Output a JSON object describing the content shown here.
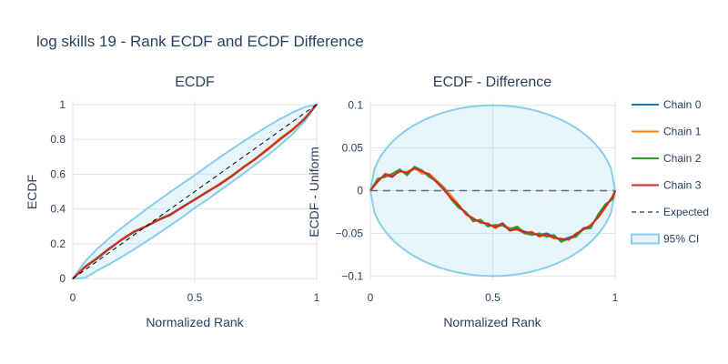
{
  "chart_data": [
    {
      "type": "line",
      "title": "ECDF",
      "xlabel": "Normalized Rank",
      "ylabel": "ECDF",
      "xlim": [
        0,
        1
      ],
      "ylim": [
        -0.02,
        1.02
      ],
      "x_ticks": [
        0,
        0.5,
        1
      ],
      "x_tick_labels": [
        "0",
        "0.5",
        "1"
      ],
      "y_ticks": [
        0,
        0.2,
        0.4,
        0.6,
        0.8,
        1
      ],
      "y_tick_labels": [
        "0",
        "0.2",
        "0.4",
        "0.6",
        "0.8",
        "1"
      ],
      "x": [
        0,
        0.05,
        0.1,
        0.15,
        0.2,
        0.25,
        0.3,
        0.35,
        0.4,
        0.45,
        0.5,
        0.55,
        0.6,
        0.65,
        0.7,
        0.75,
        0.8,
        0.85,
        0.9,
        0.95,
        1
      ],
      "series": [
        {
          "name": "Chain 0",
          "color": "#1f77b4",
          "values": [
            0,
            0.065,
            0.115,
            0.17,
            0.222,
            0.268,
            0.3,
            0.34,
            0.37,
            0.413,
            0.456,
            0.5,
            0.54,
            0.585,
            0.64,
            0.69,
            0.745,
            0.805,
            0.855,
            0.92,
            1
          ]
        },
        {
          "name": "Chain 1",
          "color": "#ff7f0e",
          "values": [
            0,
            0.07,
            0.118,
            0.172,
            0.225,
            0.27,
            0.302,
            0.338,
            0.368,
            0.41,
            0.455,
            0.498,
            0.543,
            0.59,
            0.643,
            0.692,
            0.748,
            0.805,
            0.858,
            0.918,
            1
          ]
        },
        {
          "name": "Chain 2",
          "color": "#2ca02c",
          "values": [
            0,
            0.068,
            0.12,
            0.175,
            0.222,
            0.265,
            0.298,
            0.335,
            0.365,
            0.412,
            0.452,
            0.495,
            0.54,
            0.588,
            0.64,
            0.69,
            0.743,
            0.8,
            0.852,
            0.915,
            1
          ]
        },
        {
          "name": "Chain 3",
          "color": "#d62728",
          "values": [
            0,
            0.067,
            0.116,
            0.173,
            0.224,
            0.27,
            0.3,
            0.336,
            0.367,
            0.41,
            0.454,
            0.497,
            0.538,
            0.586,
            0.638,
            0.688,
            0.742,
            0.8,
            0.853,
            0.917,
            1
          ]
        },
        {
          "name": "Expected",
          "color": "#000000",
          "dash": true,
          "values": [
            0,
            0.05,
            0.1,
            0.15,
            0.2,
            0.25,
            0.3,
            0.35,
            0.4,
            0.45,
            0.5,
            0.55,
            0.6,
            0.65,
            0.7,
            0.75,
            0.8,
            0.85,
            0.9,
            0.95,
            1
          ]
        }
      ],
      "ci": {
        "name": "95% CI",
        "color": "#87ceeb",
        "fill": "rgba(135,206,235,0.2)",
        "upper": [
          0,
          0.098,
          0.171,
          0.233,
          0.291,
          0.344,
          0.397,
          0.448,
          0.497,
          0.546,
          0.594,
          0.645,
          0.694,
          0.742,
          0.788,
          0.833,
          0.876,
          0.917,
          0.954,
          0.985,
          1
        ],
        "lower": [
          0,
          0.005,
          0.046,
          0.083,
          0.125,
          0.167,
          0.212,
          0.258,
          0.306,
          0.354,
          0.406,
          0.452,
          0.503,
          0.552,
          0.603,
          0.656,
          0.709,
          0.767,
          0.829,
          0.902,
          1
        ]
      }
    },
    {
      "type": "line",
      "title": "ECDF - Difference",
      "xlabel": "Normalized Rank",
      "ylabel": "ECDF - Uniform",
      "xlim": [
        0,
        1
      ],
      "ylim": [
        -0.105,
        0.105
      ],
      "x_ticks": [
        0,
        0.5,
        1
      ],
      "x_tick_labels": [
        "0",
        "0.5",
        "1"
      ],
      "y_ticks": [
        -0.1,
        -0.05,
        0,
        0.05,
        0.1
      ],
      "y_tick_labels": [
        "−0.1",
        "−0.05",
        "0",
        "0.05",
        "0.1"
      ],
      "x": [
        0,
        0.03,
        0.06,
        0.09,
        0.12,
        0.15,
        0.18,
        0.21,
        0.24,
        0.27,
        0.3,
        0.33,
        0.36,
        0.39,
        0.42,
        0.45,
        0.48,
        0.51,
        0.54,
        0.57,
        0.6,
        0.63,
        0.66,
        0.69,
        0.72,
        0.75,
        0.78,
        0.81,
        0.84,
        0.87,
        0.9,
        0.93,
        0.96,
        0.99,
        1
      ],
      "series": [
        {
          "name": "Chain 0",
          "color": "#1f77b4",
          "values": [
            0,
            0.012,
            0.018,
            0.016,
            0.024,
            0.02,
            0.026,
            0.022,
            0.018,
            0.01,
            0.002,
            -0.008,
            -0.018,
            -0.026,
            -0.034,
            -0.036,
            -0.04,
            -0.042,
            -0.038,
            -0.046,
            -0.044,
            -0.048,
            -0.05,
            -0.052,
            -0.05,
            -0.054,
            -0.058,
            -0.055,
            -0.052,
            -0.044,
            -0.042,
            -0.03,
            -0.018,
            -0.008,
            0
          ]
        },
        {
          "name": "Chain 1",
          "color": "#ff7f0e",
          "values": [
            0,
            0.01,
            0.02,
            0.018,
            0.022,
            0.022,
            0.027,
            0.02,
            0.02,
            0.012,
            0.004,
            -0.006,
            -0.016,
            -0.028,
            -0.032,
            -0.038,
            -0.038,
            -0.044,
            -0.04,
            -0.044,
            -0.046,
            -0.05,
            -0.048,
            -0.054,
            -0.052,
            -0.056,
            -0.056,
            -0.058,
            -0.05,
            -0.046,
            -0.04,
            -0.032,
            -0.02,
            -0.006,
            0
          ]
        },
        {
          "name": "Chain 2",
          "color": "#2ca02c",
          "values": [
            0,
            0.014,
            0.016,
            0.02,
            0.025,
            0.018,
            0.028,
            0.024,
            0.016,
            0.011,
            0.003,
            -0.01,
            -0.02,
            -0.025,
            -0.036,
            -0.034,
            -0.042,
            -0.04,
            -0.041,
            -0.045,
            -0.042,
            -0.05,
            -0.052,
            -0.05,
            -0.054,
            -0.052,
            -0.06,
            -0.056,
            -0.054,
            -0.045,
            -0.044,
            -0.028,
            -0.016,
            -0.01,
            0
          ]
        },
        {
          "name": "Chain 3",
          "color": "#d62728",
          "values": [
            0,
            0.011,
            0.019,
            0.017,
            0.023,
            0.021,
            0.026,
            0.023,
            0.019,
            0.01,
            0.001,
            -0.009,
            -0.017,
            -0.027,
            -0.033,
            -0.037,
            -0.039,
            -0.043,
            -0.039,
            -0.047,
            -0.045,
            -0.049,
            -0.049,
            -0.053,
            -0.051,
            -0.055,
            -0.057,
            -0.057,
            -0.051,
            -0.045,
            -0.041,
            -0.031,
            -0.019,
            -0.007,
            0
          ]
        },
        {
          "name": "Expected",
          "color": "#6b6b6b",
          "dash": true,
          "values": [
            0,
            0,
            0,
            0,
            0,
            0,
            0,
            0,
            0,
            0,
            0,
            0,
            0,
            0,
            0,
            0,
            0,
            0,
            0,
            0,
            0,
            0,
            0,
            0,
            0,
            0,
            0,
            0,
            0,
            0,
            0,
            0,
            0,
            0,
            0
          ]
        }
      ],
      "ci": {
        "name": "95% CI",
        "color": "#87ceeb",
        "fill": "rgba(135,206,235,0.2)",
        "half_width_max": 0.1,
        "shape": "ellipse"
      }
    }
  ],
  "figure_title": "log skills 19 - Rank ECDF and ECDF Difference",
  "legend": {
    "placement": "right",
    "items": [
      {
        "label": "Chain 0",
        "color": "#1f77b4",
        "style": "solid"
      },
      {
        "label": "Chain 1",
        "color": "#ff7f0e",
        "style": "solid"
      },
      {
        "label": "Chain 2",
        "color": "#2ca02c",
        "style": "solid"
      },
      {
        "label": "Chain 3",
        "color": "#d62728",
        "style": "solid"
      },
      {
        "label": "Expected",
        "color": "#000000",
        "style": "dash"
      },
      {
        "label": "95% CI",
        "color": "#87ceeb",
        "style": "band"
      }
    ]
  }
}
